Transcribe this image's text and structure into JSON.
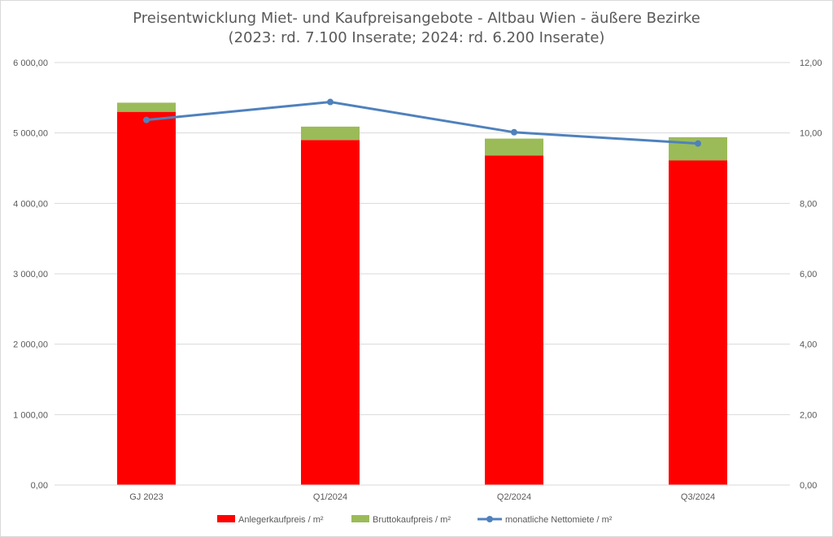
{
  "chart_data": {
    "type": "bar",
    "title": "Preisentwicklung Miet- und Kaufpreisangebote - Altbau Wien - äußere Bezirke",
    "subtitle": "(2023: rd. 7.100 Inserate; 2024: rd. 6.200 Inserate)",
    "categories": [
      "GJ 2023",
      "Q1/2024",
      "Q2/2024",
      "Q3/2024"
    ],
    "stacked": true,
    "series": [
      {
        "name": "Anlegerkaufpreis / m²",
        "type": "bar",
        "axis": "left",
        "color": "#ff0000",
        "values": [
          5300,
          4900,
          4680,
          4610
        ]
      },
      {
        "name": "Bruttokaufpreis / m²",
        "type": "bar",
        "axis": "left",
        "color": "#9bbb59",
        "values": [
          130,
          190,
          240,
          330
        ]
      },
      {
        "name": "monatliche Nettomiete / m²",
        "type": "line",
        "axis": "right",
        "color": "#4f81bd",
        "values": [
          10.37,
          10.88,
          10.02,
          9.7
        ]
      }
    ],
    "y_left": {
      "min": 0,
      "max": 6000,
      "ticks": [
        "0,00",
        "1 000,00",
        "2 000,00",
        "3 000,00",
        "4 000,00",
        "5 000,00",
        "6 000,00"
      ]
    },
    "y_right": {
      "min": 0,
      "max": 12,
      "ticks": [
        "0,00",
        "2,00",
        "4,00",
        "6,00",
        "8,00",
        "10,00",
        "12,00"
      ]
    },
    "grid": true,
    "legend_position": "bottom"
  }
}
